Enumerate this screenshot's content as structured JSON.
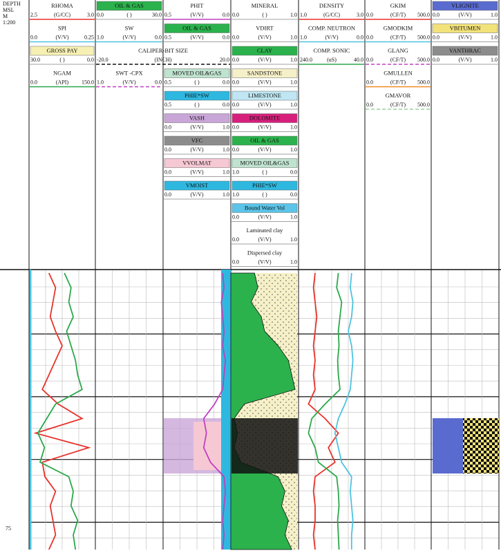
{
  "depth_header": [
    "DEPTH",
    "MSL",
    "M",
    "1:200"
  ],
  "depth_label": "75",
  "tracks": [
    {
      "entries": [
        {
          "name": "RHOMA",
          "left": "2.5",
          "unit": "(G/CC)",
          "right": "3.0",
          "color": "#e8322a",
          "samples": [
            2.65,
            2.7,
            2.68,
            2.66,
            2.7,
            2.75,
            2.7,
            2.65,
            2.6,
            2.72,
            2.9,
            2.55,
            2.95,
            2.6,
            2.62,
            2.7,
            2.66,
            2.68,
            2.7,
            2.65
          ]
        },
        {
          "name": "SPI",
          "left": "0.0",
          "unit": "(V/V)",
          "right": "0.25",
          "color": "#4cc3e0"
        },
        {
          "name": "GROSS PAY",
          "left": "30.0",
          "unit": "( )",
          "right": "0.0",
          "fill": "#f6f0b4"
        },
        {
          "name": "NGAM",
          "left": "0.0",
          "unit": "(API)",
          "right": "150.0",
          "color": "#2aa84a",
          "samples": [
            80,
            95,
            90,
            100,
            85,
            95,
            105,
            110,
            120,
            60,
            40,
            20,
            35,
            25,
            90,
            100,
            95,
            110,
            100,
            105
          ]
        }
      ]
    },
    {
      "entries": [
        {
          "name": "OIL & GAS",
          "left": "0.0",
          "unit": "( )",
          "right": "30.0",
          "fill": "#2bb24c"
        },
        {
          "name": "SW",
          "left": "1.0",
          "unit": "(V/V)",
          "right": "0.0",
          "color": "#4cc3e0"
        },
        {
          "name": "CALIPER-BIT SIZE",
          "left": "-20.0",
          "unit": "(INCH)",
          "right": "20.0",
          "color": "#111111",
          "dash": true
        },
        {
          "name": "SWT -CPX",
          "left": "1.0",
          "unit": "(V/V)",
          "right": "0.0",
          "color": "#c040c0",
          "dash": true
        }
      ]
    },
    {
      "entries": [
        {
          "name": "PHIT",
          "left": "0.5",
          "unit": "(V/V)",
          "right": "0.0",
          "color": "#c040c0",
          "samples": [
            0.06,
            0.05,
            0.07,
            0.06,
            0.05,
            0.06,
            0.04,
            0.05,
            0.06,
            0.12,
            0.2,
            0.18,
            0.2,
            0.15,
            0.05,
            0.04,
            0.05,
            0.06,
            0.05,
            0.06
          ]
        },
        {
          "name": "OIL & GAS",
          "left": "0.5",
          "unit": "(V/V)",
          "right": "0.0",
          "fill": "#2bb24c"
        },
        {
          "name": "MOVED OIL&GAS",
          "left": "0.5",
          "unit": "( )",
          "right": "0.0",
          "fill": "#bfe3cf"
        },
        {
          "name": "PHIE*SW",
          "left": "0.5",
          "unit": "( )",
          "right": "0.0",
          "fill": "#2eb8e0"
        },
        {
          "name": "VASH",
          "left": "0.0",
          "unit": "(V/V)",
          "right": "1.0",
          "fill": "#c9a6d8"
        },
        {
          "name": "VFC",
          "left": "0.0",
          "unit": "(V/V)",
          "right": "1.0",
          "fill": "#8c8c8c"
        },
        {
          "name": "VVOLMAT",
          "left": "0.0",
          "unit": "(V/V)",
          "right": "1.0",
          "fill": "#f6c8d4"
        },
        {
          "name": "VMOIST",
          "left": "0.0",
          "unit": "(V/V)",
          "right": "1.0",
          "fill": "#2eb8e0"
        }
      ]
    },
    {
      "entries": [
        {
          "name": "MINERAL",
          "left": "0.0",
          "unit": "( )",
          "right": "1.0"
        },
        {
          "name": "VDIRT",
          "left": "0.0",
          "unit": "(V/V)",
          "right": "1.0"
        },
        {
          "name": "CLAY",
          "left": "0.0",
          "unit": "(V/V)",
          "right": "1.0",
          "fill": "#2bb24c",
          "samples": [
            0.35,
            0.4,
            0.3,
            0.45,
            0.5,
            0.7,
            0.85,
            0.9,
            0.95,
            0.2,
            0.05,
            0.1,
            0.05,
            0.15,
            0.7,
            0.8,
            0.75,
            0.85,
            0.8,
            0.9
          ]
        },
        {
          "name": "SANDSTONE",
          "left": "0.0",
          "unit": "(V/V)",
          "right": "1.0",
          "fill": "#f6f0c8"
        },
        {
          "name": "LIMESTONE",
          "left": "0.0",
          "unit": "(V/V)",
          "right": "1.0",
          "fill": "#bfe6f2"
        },
        {
          "name": "DOLOMITE",
          "left": "0.0",
          "unit": "(V/V)",
          "right": "1.0",
          "fill": "#d6207c"
        },
        {
          "name": "OIL & GAS",
          "left": "0.0",
          "unit": "(V/V)",
          "right": "1.0",
          "fill": "#2bb24c"
        },
        {
          "name": "MOVED OIL&GAS",
          "left": "1.0",
          "unit": "( )",
          "right": "0.0",
          "fill": "#bfe3cf"
        },
        {
          "name": "PHIE*SW",
          "left": "1.0",
          "unit": "( )",
          "right": "0.0",
          "fill": "#2eb8e0"
        },
        {
          "name": "Bound Water Vol",
          "left": "0.0",
          "unit": "(V/V)",
          "right": "1.0",
          "fill": "#5bc4e8"
        },
        {
          "name": "Laminated clay",
          "left": "0.0",
          "unit": "(V/V)",
          "right": "1.0"
        },
        {
          "name": "Dispersed clay",
          "left": "0.0",
          "unit": "(V/V)",
          "right": "1.0"
        }
      ]
    },
    {
      "entries": [
        {
          "name": "DENSITY",
          "left": "1.0",
          "unit": "(G/CC)",
          "right": "3.0",
          "color": "#e8322a",
          "samples": [
            1.5,
            1.45,
            1.5,
            1.55,
            1.5,
            1.45,
            1.5,
            1.45,
            1.5,
            1.3,
            1.8,
            2.2,
            1.9,
            2.1,
            1.5,
            1.45,
            1.5,
            1.5,
            1.45,
            1.5
          ]
        },
        {
          "name": "COMP. NEUTRON",
          "left": "1.0",
          "unit": "(V/V)",
          "right": "0.0",
          "color": "#4cc3e0",
          "samples": [
            0.2,
            0.22,
            0.18,
            0.2,
            0.25,
            0.2,
            0.18,
            0.2,
            0.22,
            0.3,
            0.4,
            0.45,
            0.4,
            0.35,
            0.2,
            0.22,
            0.2,
            0.18,
            0.2,
            0.2
          ]
        },
        {
          "name": "COMP. SONIC",
          "left": "240.0",
          "unit": "(uS)",
          "right": "40.0",
          "color": "#2aa84a",
          "samples": [
            120,
            125,
            110,
            115,
            120,
            118,
            122,
            120,
            115,
            160,
            200,
            210,
            190,
            180,
            125,
            120,
            118,
            122,
            120,
            118
          ]
        }
      ]
    },
    {
      "entries": [
        {
          "name": "GKIM",
          "left": "0.0",
          "unit": "(CF/T)",
          "right": "500.0",
          "color": "#e8322a"
        },
        {
          "name": "GMODKIM",
          "left": "0.0",
          "unit": "(CF/T)",
          "right": "500.0",
          "color": "#4cc3e0"
        },
        {
          "name": "GLANG",
          "left": "0.0",
          "unit": "(CF/T)",
          "right": "500.0",
          "color": "#c040c0",
          "dash": true
        },
        {
          "name": "GMULLEN",
          "left": "0.0",
          "unit": "(CF/T)",
          "right": "500.0",
          "color": "#f08a24"
        },
        {
          "name": "GMAVOR",
          "left": "0.0",
          "unit": "(CF/T)",
          "right": "500.0",
          "color": "#9bd29b",
          "dash": true
        }
      ]
    },
    {
      "entries": [
        {
          "name": "VLIGNITE",
          "left": "0.0",
          "unit": "(V/V)",
          "right": "1.0",
          "fill": "#5a6bd0"
        },
        {
          "name": "VBITUMEN",
          "left": "0.0",
          "unit": "(V/V)",
          "right": "1.0",
          "fill": "#f2e27a"
        },
        {
          "name": "VANTHRAC",
          "left": "0.0",
          "unit": "(V/V)",
          "right": "1.0",
          "fill": "#8c8c8c"
        }
      ]
    }
  ]
}
